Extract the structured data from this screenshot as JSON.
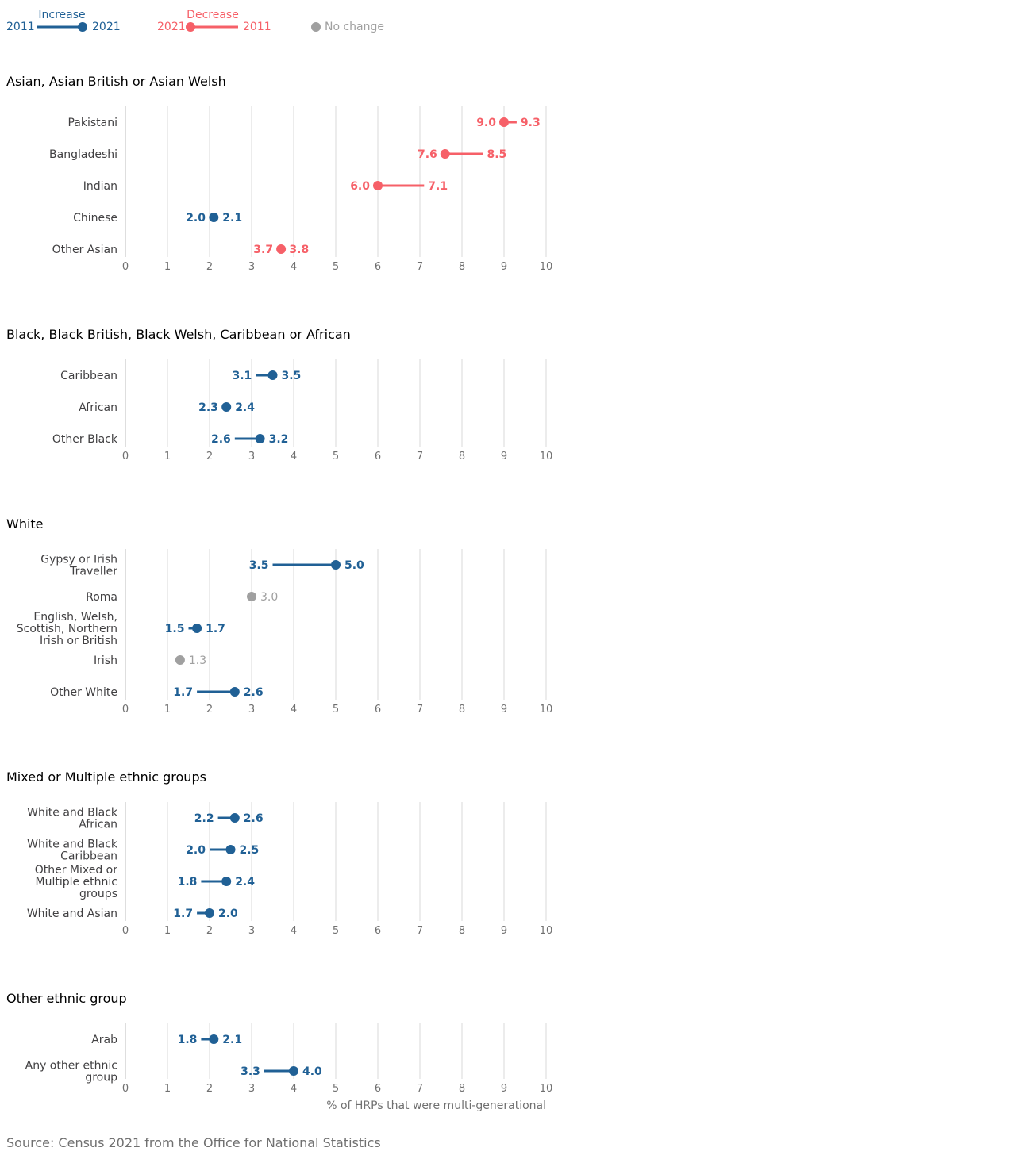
{
  "legend": {
    "increase": {
      "title": "Increase",
      "from": "2011",
      "to": "2021",
      "color": "#206095"
    },
    "decrease": {
      "title": "Decrease",
      "from": "2021",
      "to": "2011",
      "color": "#f66068"
    },
    "nochange": {
      "label": "No change",
      "color": "#a0a0a0"
    }
  },
  "colors": {
    "increase": "#206095",
    "decrease": "#f66068",
    "nochange": "#a0a0a0",
    "grid": "#d9d9d9",
    "axis_text": "#707070",
    "label_text": "#414042"
  },
  "chart_data": {
    "type": "dumbbell",
    "xlim": [
      0,
      10
    ],
    "xticks": [
      0,
      1,
      2,
      3,
      4,
      5,
      6,
      7,
      8,
      9,
      10
    ],
    "xlabel": "% of HRPs that were multi-generational",
    "grid": true,
    "legend_position": "top-left",
    "series_names": [
      "2011",
      "2021"
    ],
    "groups": [
      {
        "title": "Asian, Asian British or Asian Welsh",
        "rows": [
          {
            "label": "Pakistani",
            "v2011": 9.3,
            "v2021": 9.0
          },
          {
            "label": "Bangladeshi",
            "v2011": 8.5,
            "v2021": 7.6
          },
          {
            "label": "Indian",
            "v2011": 7.1,
            "v2021": 6.0
          },
          {
            "label": "Chinese",
            "v2011": 2.0,
            "v2021": 2.1
          },
          {
            "label": "Other Asian",
            "v2011": 3.8,
            "v2021": 3.7
          }
        ]
      },
      {
        "title": "Black, Black British, Black Welsh, Caribbean or African",
        "rows": [
          {
            "label": "Caribbean",
            "v2011": 3.1,
            "v2021": 3.5
          },
          {
            "label": "African",
            "v2011": 2.3,
            "v2021": 2.4
          },
          {
            "label": "Other Black",
            "v2011": 2.6,
            "v2021": 3.2
          }
        ]
      },
      {
        "title": "White",
        "rows": [
          {
            "label": "Gypsy or Irish Traveller",
            "lines": [
              "Gypsy or Irish",
              "Traveller"
            ],
            "v2011": 3.5,
            "v2021": 5.0
          },
          {
            "label": "Roma",
            "v2011": null,
            "v2021": 3.0
          },
          {
            "label": "English, Welsh, Scottish, Northern Irish or British",
            "lines": [
              "English, Welsh,",
              "Scottish, Northern",
              "Irish or British"
            ],
            "v2011": 1.5,
            "v2021": 1.7
          },
          {
            "label": "Irish",
            "v2011": 1.3,
            "v2021": 1.3
          },
          {
            "label": "Other White",
            "v2011": 1.7,
            "v2021": 2.6
          }
        ]
      },
      {
        "title": "Mixed or Multiple ethnic groups",
        "rows": [
          {
            "label": "White and Black African",
            "lines": [
              "White and Black",
              "African"
            ],
            "v2011": 2.2,
            "v2021": 2.6
          },
          {
            "label": "White and Black Caribbean",
            "lines": [
              "White and Black",
              "Caribbean"
            ],
            "v2011": 2.0,
            "v2021": 2.5
          },
          {
            "label": "Other Mixed or Multiple ethnic groups",
            "lines": [
              "Other Mixed or",
              "Multiple ethnic",
              "groups"
            ],
            "v2011": 1.8,
            "v2021": 2.4
          },
          {
            "label": "White and Asian",
            "v2011": 1.7,
            "v2021": 2.0
          }
        ]
      },
      {
        "title": "Other ethnic group",
        "rows": [
          {
            "label": "Arab",
            "v2011": 1.8,
            "v2021": 2.1
          },
          {
            "label": "Any other ethnic group",
            "lines": [
              "Any other ethnic",
              "group"
            ],
            "v2011": 3.3,
            "v2021": 4.0
          }
        ]
      }
    ]
  },
  "source": "Source: Census 2021 from the Office for National Statistics"
}
